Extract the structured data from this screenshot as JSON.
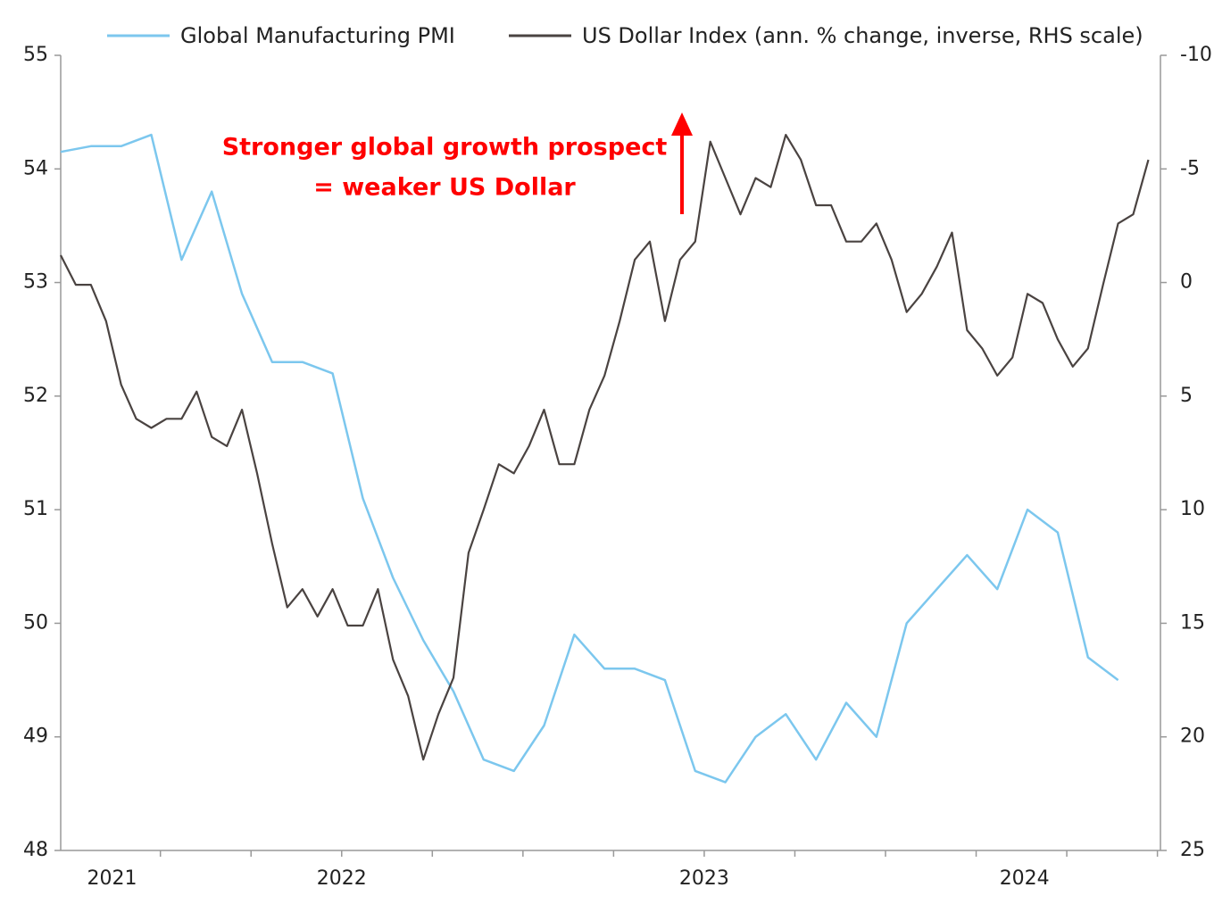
{
  "chart_data": {
    "type": "line",
    "annotation": [
      "Stronger global growth prospect",
      "= weaker US Dollar"
    ],
    "annotation_color": "#ff0000",
    "xlim": [
      0,
      36.4
    ],
    "xticks": [
      3.3,
      6.3,
      9.3,
      12.3,
      15.3,
      18.3,
      21.3,
      24.3,
      27.3,
      30.3,
      33.3,
      36.3
    ],
    "xlabels": [
      {
        "value": 1.7,
        "label": "2021"
      },
      {
        "value": 9.3,
        "label": "2022"
      },
      {
        "value": 21.3,
        "label": "2023"
      },
      {
        "value": 31.9,
        "label": "2024"
      }
    ],
    "ylim": [
      48,
      55
    ],
    "yticks": [
      48,
      49,
      50,
      51,
      52,
      53,
      54,
      55
    ],
    "y2lim": [
      -10,
      25
    ],
    "y2_inverted": true,
    "y2ticks": [
      -10,
      -5,
      0,
      5,
      10,
      15,
      20,
      25
    ],
    "series": [
      {
        "name": "Global Manufacturing PMI",
        "color": "#7cc7ee",
        "x": [
          0,
          1,
          2,
          3,
          4,
          5,
          6,
          7,
          8,
          9,
          10,
          11,
          12,
          13,
          14,
          15,
          16,
          17,
          18,
          19,
          20,
          21,
          22,
          23,
          24,
          25,
          26,
          27,
          28,
          29,
          30,
          31,
          32,
          33,
          34,
          35
        ],
        "values": [
          54.15,
          54.2,
          54.2,
          54.3,
          53.2,
          53.8,
          52.9,
          52.3,
          52.3,
          52.2,
          51.1,
          50.4,
          49.85,
          49.4,
          48.8,
          48.7,
          49.1,
          49.9,
          49.6,
          49.6,
          49.5,
          48.7,
          48.6,
          49.0,
          49.2,
          48.8,
          49.3,
          49.0,
          50.0,
          50.3,
          50.6,
          50.3,
          51.0,
          50.8,
          49.7,
          49.5
        ]
      },
      {
        "name": "US Dollar Index (ann. % change, inverse, RHS scale)",
        "color": "#4a4341",
        "axis": "y2",
        "x": [
          0,
          0.5,
          1,
          1.5,
          2,
          2.5,
          3,
          3.5,
          4,
          4.5,
          5,
          5.5,
          6,
          6.5,
          7,
          7.5,
          8,
          8.5,
          9,
          9.5,
          10,
          10.5,
          11,
          11.5,
          12,
          12.5,
          13,
          13.5,
          14,
          14.5,
          15,
          15.5,
          16,
          16.5,
          17,
          17.5,
          18,
          18.5,
          19,
          19.5,
          20,
          20.5,
          21,
          21.5,
          22,
          22.5,
          23,
          23.5,
          24,
          24.5,
          25,
          25.5,
          26,
          26.5,
          27,
          27.5,
          28,
          28.5,
          29,
          29.5,
          30,
          30.5,
          31,
          31.5,
          32,
          32.5,
          33,
          33.5,
          34,
          34.5,
          35,
          35.5,
          36
        ],
        "values": [
          -1.2,
          0.1,
          0.1,
          1.7,
          4.5,
          6.0,
          6.4,
          6.0,
          6.0,
          4.8,
          6.8,
          7.2,
          5.6,
          8.4,
          11.5,
          14.3,
          13.5,
          14.7,
          13.5,
          15.1,
          15.1,
          13.5,
          16.6,
          18.2,
          21.0,
          19.0,
          17.4,
          11.9,
          10.0,
          8.0,
          8.4,
          7.2,
          5.6,
          8.0,
          8.0,
          5.6,
          4.1,
          1.7,
          -1.0,
          -1.8,
          1.7,
          -1.0,
          -1.8,
          -6.2,
          -4.6,
          -3.0,
          -4.6,
          -4.2,
          -6.5,
          -5.4,
          -3.4,
          -3.4,
          -1.8,
          -1.8,
          -2.6,
          -1.0,
          1.3,
          0.5,
          -0.7,
          -2.2,
          2.1,
          2.9,
          4.1,
          3.3,
          0.5,
          0.9,
          2.5,
          3.7,
          2.9,
          0.1,
          -2.6,
          -3.0,
          -5.4
        ]
      }
    ]
  }
}
